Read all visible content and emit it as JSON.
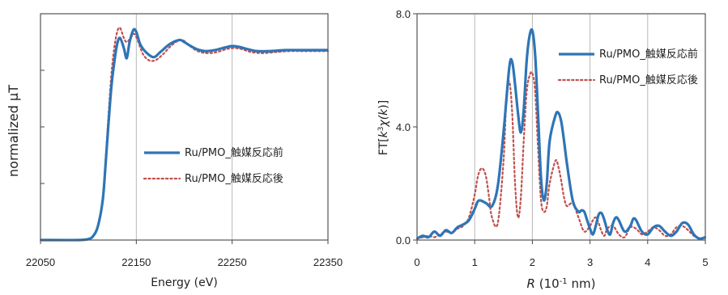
{
  "chart_data": [
    {
      "type": "line",
      "title": "",
      "xlabel": "Energy (eV)",
      "ylabel": "normalized μT",
      "xlim": [
        22050,
        22350
      ],
      "ylim": [
        0,
        1.12
      ],
      "x_ticks": [
        "22050",
        "22150",
        "22250",
        "22350"
      ],
      "y_tick_labels": false,
      "grid": "vertical",
      "legend": "center-right",
      "series": [
        {
          "name": "Ru/PMO_触媒反応前",
          "color": "#2e75b6",
          "style": "solid",
          "x": [
            22050,
            22090,
            22100,
            22105,
            22110,
            22115,
            22118,
            22121,
            22124,
            22127,
            22130,
            22133,
            22137,
            22140,
            22143,
            22147,
            22150,
            22154,
            22160,
            22168,
            22175,
            22185,
            22195,
            22200,
            22205,
            22213,
            22222,
            22232,
            22240,
            22250,
            22258,
            22266,
            22276,
            22290,
            22305,
            22320,
            22335,
            22350
          ],
          "y": [
            0,
            0,
            0.005,
            0.02,
            0.07,
            0.2,
            0.38,
            0.58,
            0.76,
            0.88,
            0.97,
            1.0,
            0.95,
            0.9,
            0.98,
            1.04,
            1.03,
            0.97,
            0.93,
            0.905,
            0.93,
            0.97,
            0.99,
            0.98,
            0.965,
            0.945,
            0.935,
            0.94,
            0.95,
            0.96,
            0.955,
            0.945,
            0.935,
            0.935,
            0.94,
            0.94,
            0.94,
            0.94
          ]
        },
        {
          "name": "Ru/PMO_触媒反応後",
          "color": "#c0504d",
          "style": "dotted",
          "x": [
            22050,
            22090,
            22100,
            22105,
            22110,
            22115,
            22118,
            22121,
            22124,
            22127,
            22130,
            22133,
            22137,
            22140,
            22144,
            22148,
            22152,
            22157,
            22163,
            22170,
            22178,
            22186,
            22195,
            22200,
            22206,
            22214,
            22224,
            22234,
            22244,
            22252,
            22260,
            22270,
            22282,
            22295,
            22310,
            22325,
            22340,
            22350
          ],
          "y": [
            0,
            0,
            0.005,
            0.02,
            0.07,
            0.2,
            0.4,
            0.62,
            0.82,
            0.95,
            1.03,
            1.05,
            1.0,
            0.98,
            1.0,
            1.02,
            0.98,
            0.92,
            0.89,
            0.89,
            0.92,
            0.96,
            0.99,
            0.985,
            0.96,
            0.935,
            0.925,
            0.93,
            0.945,
            0.95,
            0.945,
            0.93,
            0.925,
            0.93,
            0.935,
            0.935,
            0.935,
            0.935
          ]
        }
      ]
    },
    {
      "type": "line",
      "title": "",
      "xlabel_parts": [
        "R",
        " (10",
        "-1",
        " nm)"
      ],
      "ylabel_parts": [
        "FT[",
        "k",
        "3",
        "χ(",
        "k",
        ")]"
      ],
      "xlim": [
        0,
        5
      ],
      "ylim": [
        0,
        8
      ],
      "x_ticks": [
        "0",
        "1",
        "2",
        "3",
        "4",
        "5"
      ],
      "y_ticks": [
        "0.0",
        "4.0",
        "8.0"
      ],
      "grid": "vertical",
      "legend": "top-right",
      "series": [
        {
          "name": "Ru/PMO_触媒反応前",
          "color": "#2e75b6",
          "style": "solid",
          "x": [
            0,
            0.1,
            0.2,
            0.3,
            0.4,
            0.5,
            0.6,
            0.7,
            0.8,
            0.9,
            1.0,
            1.05,
            1.1,
            1.2,
            1.3,
            1.4,
            1.5,
            1.6,
            1.65,
            1.7,
            1.75,
            1.8,
            1.85,
            1.9,
            1.95,
            2.0,
            2.05,
            2.1,
            2.15,
            2.2,
            2.25,
            2.3,
            2.4,
            2.45,
            2.5,
            2.55,
            2.6,
            2.7,
            2.8,
            2.85,
            2.9,
            2.95,
            3.0,
            3.05,
            3.1,
            3.15,
            3.2,
            3.25,
            3.3,
            3.35,
            3.4,
            3.45,
            3.5,
            3.6,
            3.7,
            3.75,
            3.8,
            3.9,
            4.0,
            4.1,
            4.2,
            4.3,
            4.4,
            4.5,
            4.6,
            4.7,
            4.8,
            4.9,
            5.0
          ],
          "y": [
            0.05,
            0.15,
            0.1,
            0.3,
            0.15,
            0.35,
            0.25,
            0.45,
            0.55,
            0.7,
            1.1,
            1.35,
            1.4,
            1.3,
            1.2,
            1.9,
            3.8,
            6.1,
            6.3,
            5.5,
            4.5,
            3.8,
            4.6,
            6.3,
            7.2,
            7.4,
            6.5,
            4.4,
            2.2,
            1.4,
            2.0,
            3.5,
            4.4,
            4.5,
            4.2,
            3.5,
            2.7,
            1.4,
            1.0,
            1.05,
            1.0,
            0.7,
            0.4,
            0.2,
            0.5,
            0.9,
            0.95,
            0.7,
            0.35,
            0.2,
            0.6,
            0.8,
            0.7,
            0.3,
            0.5,
            0.75,
            0.7,
            0.3,
            0.2,
            0.45,
            0.5,
            0.3,
            0.15,
            0.3,
            0.6,
            0.55,
            0.2,
            0.05,
            0.1
          ]
        },
        {
          "name": "Ru/PMO_触媒反応後",
          "color": "#c0504d",
          "style": "dotted",
          "x": [
            0,
            0.1,
            0.2,
            0.3,
            0.4,
            0.5,
            0.6,
            0.7,
            0.8,
            0.9,
            1.0,
            1.05,
            1.1,
            1.15,
            1.2,
            1.25,
            1.3,
            1.4,
            1.5,
            1.55,
            1.6,
            1.65,
            1.7,
            1.75,
            1.8,
            1.85,
            1.9,
            1.95,
            2.0,
            2.05,
            2.1,
            2.15,
            2.2,
            2.25,
            2.3,
            2.4,
            2.45,
            2.5,
            2.55,
            2.6,
            2.7,
            2.8,
            2.9,
            3.0,
            3.05,
            3.1,
            3.15,
            3.2,
            3.25,
            3.3,
            3.4,
            3.5,
            3.6,
            3.7,
            3.8,
            3.9,
            4.0,
            4.1,
            4.2,
            4.3,
            4.4,
            4.5,
            4.6,
            4.7,
            4.8,
            4.9,
            5.0
          ],
          "y": [
            0.05,
            0.1,
            0.15,
            0.1,
            0.2,
            0.3,
            0.25,
            0.4,
            0.5,
            0.8,
            1.6,
            2.2,
            2.5,
            2.5,
            2.2,
            1.5,
            0.8,
            0.6,
            2.8,
            5.0,
            5.6,
            4.5,
            2.0,
            0.8,
            1.5,
            3.5,
            5.2,
            5.8,
            5.9,
            5.2,
            3.2,
            1.4,
            1.0,
            1.2,
            2.0,
            2.8,
            2.6,
            2.1,
            1.5,
            1.2,
            1.3,
            0.8,
            0.3,
            0.5,
            0.7,
            0.8,
            0.6,
            0.3,
            0.15,
            0.4,
            0.5,
            0.2,
            0.1,
            0.45,
            0.4,
            0.2,
            0.3,
            0.45,
            0.35,
            0.15,
            0.2,
            0.45,
            0.5,
            0.35,
            0.15,
            0.05,
            0.1
          ]
        }
      ]
    }
  ]
}
